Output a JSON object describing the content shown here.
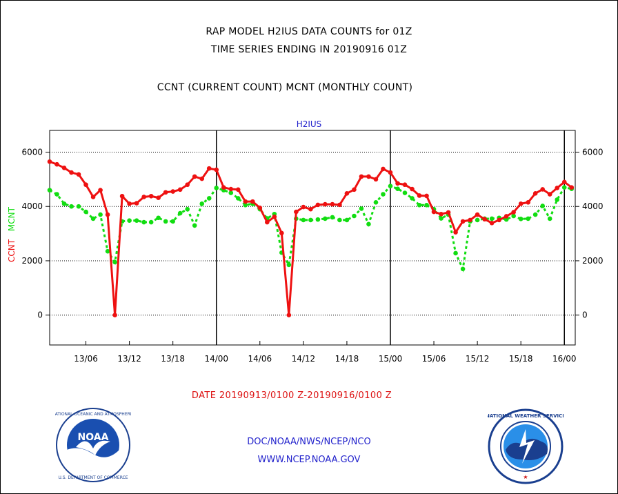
{
  "header": {
    "title_line1": "RAP MODEL H2IUS DATA COUNTS for 01Z",
    "title_line2": "TIME SERIES ENDING IN 20190916 01Z",
    "subtitle": "CCNT (CURRENT COUNT) MCNT (MONTHLY COUNT)"
  },
  "footer": {
    "date_range": "DATE 20190913/0100 Z-20190916/0100 Z",
    "org_line": "DOC/NOAA/NWS/NCEP/NCO",
    "url_line": "WWW.NCEP.NOAA.GOV"
  },
  "logos": {
    "left": "NOAA",
    "right": "NATIONAL WEATHER SERVICE"
  },
  "colors": {
    "ccnt": "#ee1111",
    "mcnt": "#11dd11",
    "axis_label_green": "#11dd11",
    "axis_label_red": "#ee1111",
    "panel_title": "#2222cc"
  },
  "chart_data": {
    "type": "line",
    "title": "H2IUS",
    "ylabel_left_red": "CCNT",
    "ylabel_left_green": "MCNT",
    "x_unit": "hours since 20190913/0100 Z",
    "xlim": [
      0,
      72.5
    ],
    "ylim": [
      -1100,
      6800
    ],
    "y_ticks": [
      0,
      2000,
      4000,
      6000
    ],
    "x_ticks": [
      {
        "x": 5,
        "label": "13/06"
      },
      {
        "x": 11,
        "label": "13/12"
      },
      {
        "x": 17,
        "label": "13/18"
      },
      {
        "x": 23,
        "label": "14/00"
      },
      {
        "x": 29,
        "label": "14/06"
      },
      {
        "x": 35,
        "label": "14/12"
      },
      {
        "x": 41,
        "label": "14/18"
      },
      {
        "x": 47,
        "label": "15/00"
      },
      {
        "x": 53,
        "label": "15/06"
      },
      {
        "x": 59,
        "label": "15/12"
      },
      {
        "x": 65,
        "label": "15/18"
      },
      {
        "x": 71,
        "label": "16/00"
      }
    ],
    "day_separators": [
      23,
      47,
      71
    ],
    "grid": true,
    "series": [
      {
        "name": "CCNT",
        "color": "#ee1111",
        "values": [
          5650,
          5550,
          5420,
          5250,
          5180,
          4800,
          4350,
          4600,
          3700,
          0,
          4380,
          4100,
          4120,
          4350,
          4380,
          4320,
          4520,
          4550,
          4620,
          4800,
          5100,
          5020,
          5400,
          5350,
          4700,
          4640,
          4620,
          4180,
          4180,
          3950,
          3420,
          3620,
          3020,
          0,
          3800,
          3980,
          3900,
          4060,
          4080,
          4080,
          4060,
          4480,
          4620,
          5100,
          5100,
          5000,
          5380,
          5250,
          4850,
          4800,
          4640,
          4400,
          4390,
          3800,
          3720,
          3780,
          3050,
          3450,
          3500,
          3700,
          3530,
          3390,
          3500,
          3640,
          3790,
          4100,
          4150,
          4480,
          4630,
          4450,
          4680,
          4900,
          4700
        ]
      },
      {
        "name": "MCNT",
        "color": "#11dd11",
        "values": [
          4600,
          4450,
          4100,
          4000,
          4000,
          3800,
          3550,
          3700,
          2350,
          1950,
          3450,
          3480,
          3480,
          3420,
          3420,
          3580,
          3450,
          3450,
          3750,
          3900,
          3300,
          4100,
          4300,
          4680,
          4600,
          4500,
          4300,
          4050,
          4100,
          3900,
          3560,
          3720,
          2300,
          1850,
          3550,
          3500,
          3500,
          3520,
          3550,
          3600,
          3500,
          3500,
          3650,
          3920,
          3350,
          4150,
          4450,
          4750,
          4650,
          4500,
          4300,
          4050,
          4050,
          3900,
          3560,
          3700,
          2280,
          1700,
          3450,
          3500,
          3550,
          3550,
          3580,
          3520,
          3650,
          3540,
          3550,
          3700,
          4020,
          3550,
          4250,
          4700,
          4650
        ]
      }
    ]
  }
}
